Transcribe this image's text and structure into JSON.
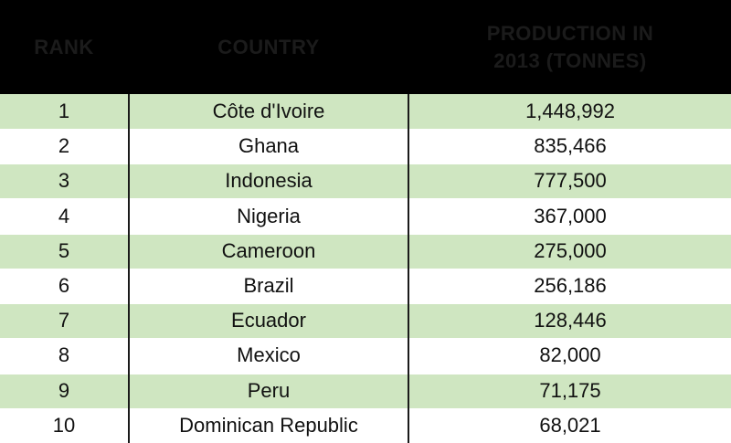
{
  "colors": {
    "header_bg": "#000000",
    "header_text": "#1b1b1b",
    "row_green": "#cfe6c1",
    "row_white": "#ffffff",
    "divider": "#1a1a1a"
  },
  "table": {
    "headers": {
      "rank": "RANK",
      "country": "COUNTRY",
      "production": "PRODUCTION IN 2013 (TONNES)"
    },
    "rows": [
      {
        "rank": "1",
        "country": "Côte d'Ivoire",
        "production": "1,448,992"
      },
      {
        "rank": "2",
        "country": "Ghana",
        "production": "835,466"
      },
      {
        "rank": "3",
        "country": "Indonesia",
        "production": "777,500"
      },
      {
        "rank": "4",
        "country": "Nigeria",
        "production": "367,000"
      },
      {
        "rank": "5",
        "country": "Cameroon",
        "production": "275,000"
      },
      {
        "rank": "6",
        "country": "Brazil",
        "production": "256,186"
      },
      {
        "rank": "7",
        "country": "Ecuador",
        "production": "128,446"
      },
      {
        "rank": "8",
        "country": "Mexico",
        "production": "82,000"
      },
      {
        "rank": "9",
        "country": "Peru",
        "production": "71,175"
      },
      {
        "rank": "10",
        "country": "Dominican Republic",
        "production": "68,021"
      }
    ]
  },
  "chart_data": {
    "type": "table",
    "title": "",
    "columns": [
      "RANK",
      "COUNTRY",
      "PRODUCTION IN 2013 (TONNES)"
    ],
    "categories": [
      "Côte d'Ivoire",
      "Ghana",
      "Indonesia",
      "Nigeria",
      "Cameroon",
      "Brazil",
      "Ecuador",
      "Mexico",
      "Peru",
      "Dominican Republic"
    ],
    "values": [
      1448992,
      835466,
      777500,
      367000,
      275000,
      256186,
      128446,
      82000,
      71175,
      68021
    ]
  }
}
